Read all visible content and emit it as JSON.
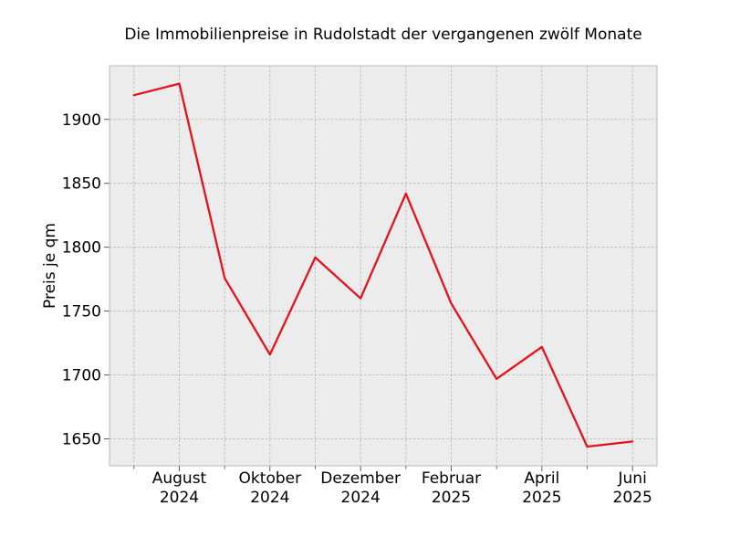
{
  "chart_data": {
    "type": "line",
    "title": "Die Immobilienpreise in Rudolstadt der vergangenen zwölf Monate",
    "xlabel": "",
    "ylabel": "Preis je qm",
    "x": [
      "2024-07",
      "2024-08",
      "2024-09",
      "2024-10",
      "2024-11",
      "2024-12",
      "2025-01",
      "2025-02",
      "2025-03",
      "2025-04",
      "2025-05",
      "2025-06"
    ],
    "series": [
      {
        "values": [
          1919,
          1928,
          1776,
          1716,
          1792,
          1760,
          1842,
          1756,
          1697,
          1722,
          1644,
          1648
        ]
      }
    ],
    "x_tick_labels": [
      {
        "x": "2024-08",
        "line1": "August",
        "line2": "2024"
      },
      {
        "x": "2024-10",
        "line1": "Oktober",
        "line2": "2024"
      },
      {
        "x": "2024-12",
        "line1": "Dezember",
        "line2": "2024"
      },
      {
        "x": "2025-02",
        "line1": "Februar",
        "line2": "2025"
      },
      {
        "x": "2025-04",
        "line1": "April",
        "line2": "2025"
      },
      {
        "x": "2025-06",
        "line1": "Juni",
        "line2": "2025"
      }
    ],
    "y_ticks": [
      1650,
      1700,
      1750,
      1800,
      1850,
      1900
    ],
    "ylim": [
      1629,
      1942
    ],
    "grid": true,
    "colors": {
      "line": "#e3121b",
      "plot_background": "#ececec",
      "grid": "#b0b0b0",
      "frame": "#b8b8b8"
    }
  }
}
